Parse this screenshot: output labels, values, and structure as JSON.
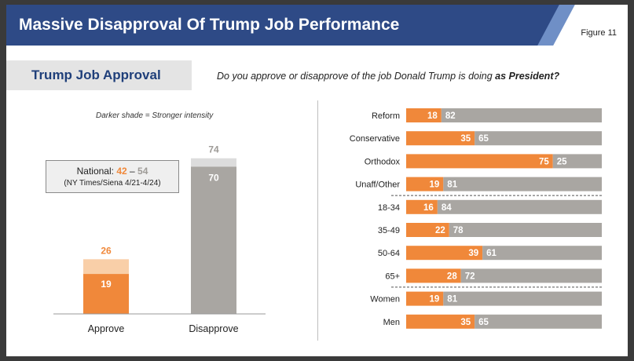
{
  "header": {
    "title": "Massive Disapproval Of Trump Job Performance",
    "figure": "Figure 11"
  },
  "subtitle": "Trump Job Approval",
  "question": {
    "text": "Do you approve or disapprove of the job Donald Trump is doing ",
    "emphasis": "as President?"
  },
  "shade_note": "Darker shade = Stronger intensity",
  "national": {
    "label": "National: ",
    "approve": "42",
    "dash": " – ",
    "disapprove": "54",
    "source": "(NY Times/Siena 4/21-4/24)"
  },
  "colors": {
    "orange": "#f0883a",
    "light_orange": "#f9cfa8",
    "gray": "#a9a6a2",
    "light_gray": "#dcdcdc",
    "navy": "#2e4a86"
  },
  "chart_data": [
    {
      "type": "bar",
      "stacked": true,
      "categories": [
        "Approve",
        "Disapprove"
      ],
      "series": [
        {
          "values": [
            19,
            70
          ]
        },
        {
          "values": [
            7,
            4
          ]
        }
      ],
      "totals": [
        26,
        74
      ],
      "ylim": [
        0,
        80
      ]
    },
    {
      "type": "bar",
      "orientation": "horizontal",
      "stacked": true,
      "categories": [
        "Reform",
        "Conservative",
        "Orthodox",
        "Unaff/Other",
        "18-34",
        "35-49",
        "50-64",
        "65+",
        "Women",
        "Men"
      ],
      "series": [
        {
          "name": "Approve",
          "values": [
            18,
            35,
            75,
            19,
            16,
            22,
            39,
            28,
            19,
            35
          ]
        },
        {
          "name": "Disapprove",
          "values": [
            82,
            65,
            25,
            81,
            84,
            78,
            61,
            72,
            81,
            65
          ]
        }
      ],
      "group_breaks_after": [
        "Unaff/Other",
        "65+"
      ],
      "xlim": [
        0,
        100
      ]
    }
  ]
}
